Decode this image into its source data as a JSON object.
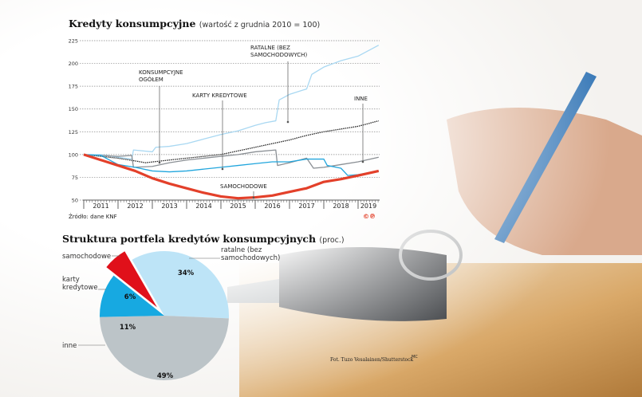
{
  "chart_data": [
    {
      "type": "line",
      "title": "Kredyty konsumpcyjne",
      "subtitle": "(wartość z grudnia 2010 = 100)",
      "source": "Źródło: dane KNF",
      "logo": "©℗",
      "ylim": [
        50,
        225
      ],
      "yticks": [
        50,
        75,
        100,
        125,
        150,
        175,
        200,
        225
      ],
      "xlim": [
        2011.0,
        2019.6
      ],
      "xtick_labels": [
        "2011",
        "2012",
        "2013",
        "2014",
        "2015",
        "2016",
        "2017",
        "2018",
        "2019"
      ],
      "grid": true,
      "series": [
        {
          "name": "RATALNE (BEZ SAMOCHODOWYCH)",
          "color": "#a9d8f2",
          "x": [
            2011,
            2011.5,
            2012,
            2012.4,
            2012.45,
            2013,
            2013.1,
            2013.5,
            2014,
            2014.5,
            2015,
            2015.5,
            2016,
            2016.3,
            2016.6,
            2016.7,
            2017,
            2017.5,
            2017.65,
            2018,
            2018.5,
            2019,
            2019.6
          ],
          "y": [
            100,
            100,
            97,
            95,
            105,
            103,
            108,
            109,
            112,
            117,
            122,
            126,
            132,
            135,
            137,
            160,
            166,
            172,
            188,
            196,
            203,
            208,
            220
          ]
        },
        {
          "name": "KONSUMPCYJNE OGÓŁEM",
          "color": "#222222",
          "x": [
            2011,
            2011.5,
            2012,
            2012.5,
            2012.8,
            2013.5,
            2014,
            2014.5,
            2015,
            2015.5,
            2016,
            2016.5,
            2017,
            2017.5,
            2018,
            2018.5,
            2019,
            2019.6
          ],
          "y": [
            100,
            98,
            96,
            93,
            91,
            94,
            96,
            98,
            100,
            104,
            108,
            112,
            116,
            121,
            125,
            128,
            131,
            137
          ]
        },
        {
          "name": "INNE",
          "color": "#8a8f94",
          "x": [
            2011,
            2011.5,
            2012,
            2012.4,
            2012.45,
            2013,
            2013.5,
            2014,
            2014.5,
            2015,
            2015.5,
            2016,
            2016.6,
            2016.65,
            2017,
            2017.5,
            2017.7,
            2018,
            2018.5,
            2019,
            2019.6
          ],
          "y": [
            100,
            99,
            98,
            99,
            86,
            87,
            91,
            94,
            96,
            98,
            100,
            103,
            105,
            88,
            91,
            96,
            85,
            86,
            89,
            92,
            97
          ]
        },
        {
          "name": "KARTY KREDYTOWE",
          "color": "#22a6dd",
          "x": [
            2011,
            2011.5,
            2012,
            2012.5,
            2013,
            2013.5,
            2014,
            2014.5,
            2015,
            2015.5,
            2016,
            2016.5,
            2017,
            2017.5,
            2018,
            2018.1,
            2018.5,
            2018.7,
            2019,
            2019.6
          ],
          "y": [
            100,
            99,
            89,
            86,
            82,
            81,
            82,
            84,
            86,
            88,
            90,
            92,
            92,
            95,
            95,
            88,
            85,
            77,
            78,
            82
          ]
        },
        {
          "name": "SAMOCHODOWE",
          "color": "#e3402a",
          "x": [
            2011,
            2011.5,
            2012,
            2012.5,
            2013,
            2013.5,
            2014,
            2014.5,
            2015,
            2015.5,
            2016,
            2016.5,
            2017,
            2017.5,
            2018,
            2018.5,
            2019,
            2019.6
          ],
          "y": [
            100,
            94,
            88,
            82,
            74,
            68,
            63,
            58,
            54,
            52,
            53,
            55,
            59,
            63,
            70,
            73,
            77,
            82
          ]
        }
      ],
      "annotations": [
        "KONSUMPCYJNE OGÓŁEM",
        "KARTY KREDYTOWE",
        "RATALNE (BEZ SAMOCHODOWYCH)",
        "INNE",
        "SAMOCHODOWE"
      ]
    },
    {
      "type": "pie",
      "title": "Struktura portfela kredytów konsumpcyjnych",
      "subtitle": "(proc.)",
      "slices": [
        {
          "label": "ratalne (bez samochodowych)",
          "value": 34,
          "display": "34%",
          "color": "#bde4f7"
        },
        {
          "label": "inne",
          "value": 49,
          "display": "49%",
          "color": "#bcc4c8"
        },
        {
          "label": "karty kredytowe",
          "value": 11,
          "display": "11%",
          "color": "#17a9e1"
        },
        {
          "label": "samochodowe",
          "value": 6,
          "display": "6%",
          "color": "#e0101a",
          "exploded": true
        }
      ]
    }
  ],
  "photo_credit": "Fot. Tuzo Vesalainen/Shutterstock",
  "author_mark": "MC"
}
